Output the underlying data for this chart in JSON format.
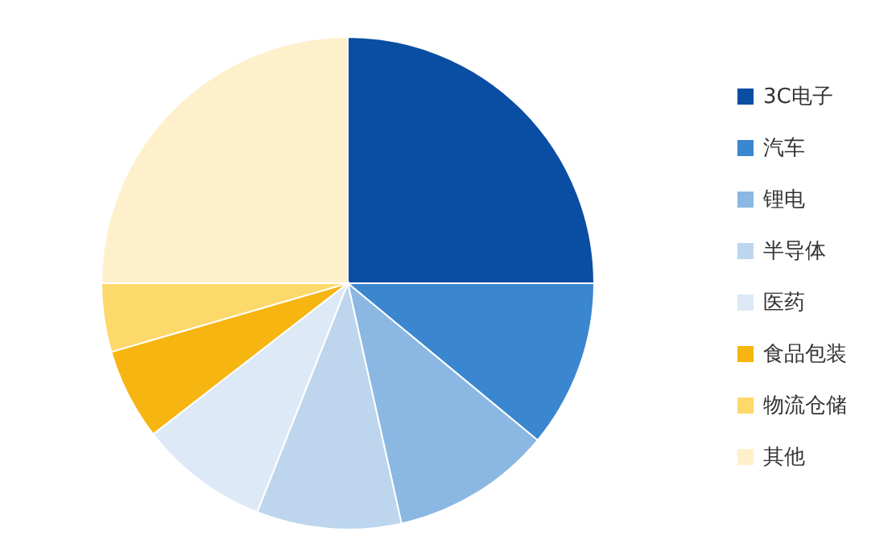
{
  "chart_data": {
    "type": "pie",
    "categories": [
      "3C电子",
      "汽车",
      "锂电",
      "半导体",
      "医药",
      "食品包装",
      "物流仓储",
      "其他"
    ],
    "values": [
      25,
      11,
      10.5,
      9.5,
      8.5,
      6,
      4.5,
      25
    ],
    "colors": [
      "#0a4ea3",
      "#3a87d0",
      "#8ab8e3",
      "#bdd6ee",
      "#dde9f6",
      "#f7b512",
      "#fdd86a",
      "#fff0cc"
    ],
    "legend": "right"
  }
}
